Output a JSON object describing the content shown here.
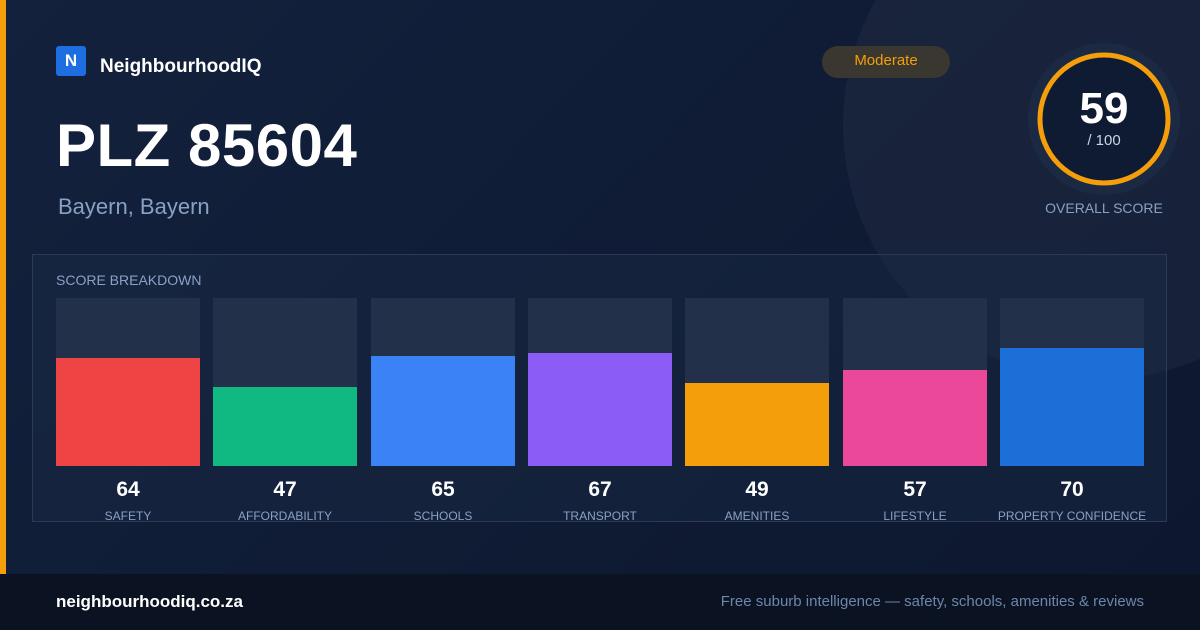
{
  "brand": {
    "logo_letter": "N",
    "name": "NeighbourhoodIQ"
  },
  "header": {
    "title": "PLZ 85604",
    "subtitle": "Bayern, Bayern",
    "badge": "Moderate"
  },
  "overall": {
    "score": "59",
    "denominator": "/ 100",
    "caption": "OVERALL SCORE",
    "score_fraction": 0.59
  },
  "breakdown": {
    "title": "SCORE BREAKDOWN"
  },
  "chart_data": {
    "type": "bar",
    "title": "SCORE BREAKDOWN",
    "categories": [
      "SAFETY",
      "AFFORDABILITY",
      "SCHOOLS",
      "TRANSPORT",
      "AMENITIES",
      "LIFESTYLE",
      "PROPERTY CONFIDENCE"
    ],
    "values": [
      64,
      47,
      65,
      67,
      49,
      57,
      70
    ],
    "colors": [
      "#ef4444",
      "#10b981",
      "#3b82f6",
      "#8b5cf6",
      "#f59e0b",
      "#ec4899",
      "#1d6fd8"
    ],
    "ylim": [
      0,
      100
    ]
  },
  "colors": {
    "accent": "#f59e0b",
    "brand": "#1d6ee0",
    "background": "#0f1b33"
  },
  "footer": {
    "url": "neighbourhoodiq.co.za",
    "tagline": "Free suburb intelligence — safety, schools, amenities & reviews"
  }
}
